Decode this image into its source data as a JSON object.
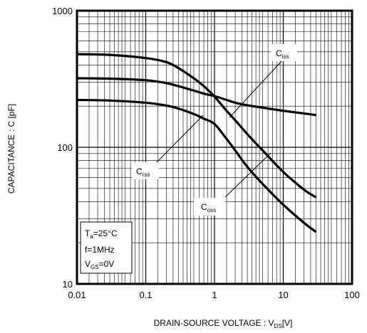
{
  "chart_data": {
    "type": "line",
    "x_scale": "log",
    "y_scale": "log",
    "xlim": [
      0.01,
      100
    ],
    "ylim": [
      10,
      1000
    ],
    "grid": true,
    "x_ticks": [
      0.01,
      0.1,
      1,
      10,
      100
    ],
    "y_ticks": [
      10,
      100,
      1000
    ],
    "x_tick_labels": [
      "0.01",
      "0.1",
      "1",
      "10",
      "100"
    ],
    "y_tick_labels": [
      "10",
      "100",
      "1000"
    ],
    "xlabel": {
      "main": "DRAIN-SOURCE VOLTAGE : V",
      "sub": "DS",
      "unit": "[V]"
    },
    "ylabel": "CAPACITANCE : C [pF]",
    "series": [
      {
        "name": "Ciss",
        "label_main": "C",
        "label_sub": "iss",
        "x": [
          0.01,
          0.03,
          0.1,
          0.2,
          0.3,
          0.5,
          0.7,
          1,
          1.5,
          2,
          3,
          5,
          10,
          20,
          30
        ],
        "y": [
          320,
          318,
          310,
          295,
          280,
          260,
          247,
          237,
          222,
          212,
          203,
          195,
          185,
          177,
          172
        ]
      },
      {
        "name": "Crss",
        "label_main": "C",
        "label_sub": "rss",
        "x": [
          0.01,
          0.03,
          0.1,
          0.2,
          0.3,
          0.5,
          0.7,
          1,
          1.5,
          2,
          3,
          5,
          10,
          20,
          30
        ],
        "y": [
          480,
          475,
          450,
          420,
          380,
          320,
          280,
          235,
          185,
          158,
          125,
          95,
          66,
          49,
          43
        ]
      },
      {
        "name": "Coss",
        "label_main": "C",
        "label_sub": "oss",
        "x": [
          0.01,
          0.03,
          0.1,
          0.2,
          0.3,
          0.5,
          0.7,
          1,
          1.5,
          2,
          3,
          5,
          10,
          20,
          30
        ],
        "y": [
          222,
          220,
          212,
          202,
          192,
          175,
          162,
          148,
          115,
          95,
          72,
          54,
          38,
          28,
          24
        ]
      }
    ],
    "conditions": [
      {
        "main": "T",
        "sub": "a",
        "rest": "=25°C"
      },
      {
        "main": "f=1MHz",
        "sub": "",
        "rest": ""
      },
      {
        "main": "V",
        "sub": "GS",
        "rest": "=0V"
      }
    ]
  }
}
